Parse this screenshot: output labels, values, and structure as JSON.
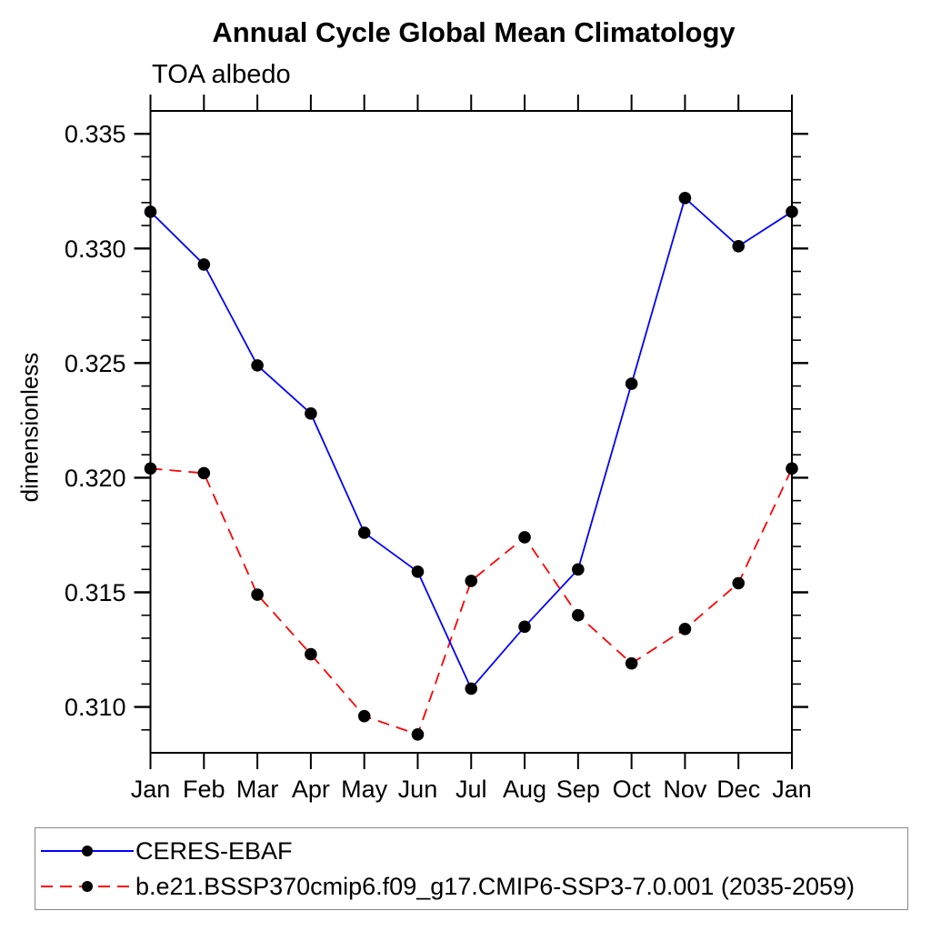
{
  "chart_data": {
    "type": "line",
    "title": "Annual Cycle Global Mean Climatology",
    "subtitle": "TOA albedo",
    "ylabel": "dimensionless",
    "xlabel": "",
    "categories": [
      "Jan",
      "Feb",
      "Mar",
      "Apr",
      "May",
      "Jun",
      "Jul",
      "Aug",
      "Sep",
      "Oct",
      "Nov",
      "Dec",
      "Jan"
    ],
    "ylim": [
      0.308,
      0.336
    ],
    "yticks_major": [
      0.31,
      0.315,
      0.32,
      0.325,
      0.33,
      0.335
    ],
    "ytick_labels": [
      "0.310",
      "0.315",
      "0.320",
      "0.325",
      "0.330",
      "0.335"
    ],
    "ytick_minor_step": 0.001,
    "grid": false,
    "legend_position": "bottom",
    "series": [
      {
        "name": "CERES-EBAF",
        "color": "#0000ff",
        "line_style": "solid",
        "marker": "filled-circle",
        "marker_color": "#000000",
        "values": [
          0.3316,
          0.3293,
          0.3249,
          0.3228,
          0.3176,
          0.3159,
          0.3108,
          0.3135,
          0.316,
          0.3241,
          0.3322,
          0.3301,
          0.3316
        ]
      },
      {
        "name": "b.e21.BSSP370cmip6.f09_g17.CMIP6-SSP3-7.0.001 (2035-2059)",
        "color": "#ff0000",
        "line_style": "dashed",
        "marker": "filled-circle",
        "marker_color": "#000000",
        "values": [
          0.3204,
          0.3202,
          0.3149,
          0.3123,
          0.3096,
          0.3088,
          0.3155,
          0.3174,
          0.314,
          0.3119,
          0.3134,
          0.3154,
          0.3204
        ]
      }
    ]
  },
  "colors": {
    "axis": "#000000",
    "background": "#ffffff",
    "legend_border": "#888888"
  }
}
